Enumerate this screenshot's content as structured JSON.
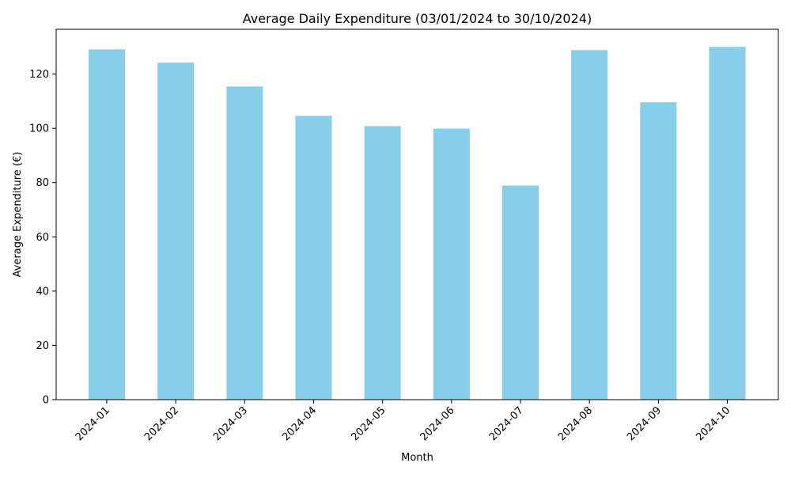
{
  "chart_data": {
    "type": "bar",
    "title": "Average Daily Expenditure (03/01/2024 to 30/10/2024)",
    "xlabel": "Month",
    "ylabel": "Average Expenditure (€)",
    "categories": [
      "2024-01",
      "2024-02",
      "2024-03",
      "2024-04",
      "2024-05",
      "2024-06",
      "2024-07",
      "2024-08",
      "2024-09",
      "2024-10"
    ],
    "values": [
      129.1,
      124.2,
      115.4,
      104.6,
      100.8,
      99.9,
      78.9,
      128.8,
      109.6,
      130.0
    ],
    "ylim": [
      0,
      136.5
    ],
    "yticks": [
      0,
      20,
      40,
      60,
      80,
      100,
      120
    ],
    "ytick_labels": [
      "0",
      "20",
      "40",
      "60",
      "80",
      "100",
      "120"
    ],
    "bar_color": "#87ceeb",
    "grid": false,
    "legend": "none"
  }
}
